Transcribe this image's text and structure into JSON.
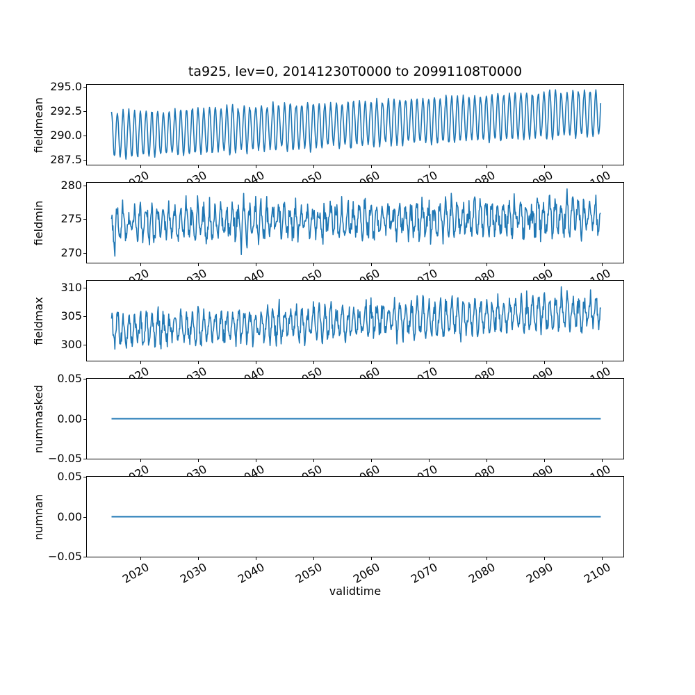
{
  "chart_data": {
    "type": "line",
    "title": "ta925, lev=0, 20141230T0000 to 20991108T0000",
    "xlabel": "validtime",
    "line_color": "#1f77b4",
    "frame_color": "#000000",
    "background_color": "#ffffff",
    "legend": "none",
    "grid": false,
    "x": {
      "lim": [
        2010.6,
        2103.9
      ],
      "data_start": 2015.0,
      "data_end": 2099.85,
      "ticks": [
        2020,
        2030,
        2040,
        2050,
        2060,
        2070,
        2080,
        2090,
        2100
      ],
      "tick_labels": [
        "2020",
        "2030",
        "2040",
        "2050",
        "2060",
        "2070",
        "2080",
        "2090",
        "2100"
      ],
      "tick_rotation_deg": 30
    },
    "subplots": [
      {
        "ylabel": "fieldmean",
        "ylim": [
          287.0,
          295.2
        ],
        "yticks": [
          287.5,
          290.0,
          292.5,
          295.0
        ],
        "ytick_labels": [
          "287.5",
          "290.0",
          "292.5",
          "295.0"
        ],
        "series": {
          "kind": "seasonal",
          "points_per_year": 12,
          "mean_start": 290.05,
          "mean_end": 292.35,
          "amplitude": 2.25,
          "amp_jitter": 0.22,
          "noise": 0.12,
          "phase": 0.0,
          "spike_prob": 0,
          "spike_size": 0,
          "seed": 11
        },
        "description": "annual cycle ~287.7-292.3 in 2015 rising steadily to ~290.0-294.8 by 2100"
      },
      {
        "ylabel": "fieldmin",
        "ylim": [
          268.5,
          280.4
        ],
        "yticks": [
          270,
          275,
          280
        ],
        "ytick_labels": [
          "270",
          "275",
          "280"
        ],
        "series": {
          "kind": "seasonal",
          "points_per_year": 12,
          "mean_start": 274.3,
          "mean_end": 275.4,
          "amplitude": 2.0,
          "amp_jitter": 0.6,
          "noise": 0.8,
          "phase": 0.3,
          "spike_prob": 0.006,
          "spike_size": -2.0,
          "seed": 22
        },
        "description": "noisy annual cycle mostly 271-278, occasional dips near 269, peaks to ~280 late century"
      },
      {
        "ylabel": "fieldmax",
        "ylim": [
          297.2,
          311.2
        ],
        "yticks": [
          300,
          305,
          310
        ],
        "ytick_labels": [
          "300",
          "305",
          "310"
        ],
        "series": {
          "kind": "seasonal",
          "points_per_year": 12,
          "mean_start": 302.4,
          "mean_end": 305.7,
          "amplitude": 2.4,
          "amp_jitter": 0.6,
          "noise": 0.75,
          "phase": -0.2,
          "spike_prob": 0.008,
          "spike_size": 1.8,
          "seed": 33
        },
        "description": "noisy annual cycle ~299-305.5 in 2015 rising to ~301.5-310.5 by 2100"
      },
      {
        "ylabel": "nummasked",
        "ylim": [
          -0.05,
          0.05
        ],
        "yticks": [
          -0.05,
          0.0,
          0.05
        ],
        "ytick_labels": [
          "−0.05",
          "0.00",
          "0.05"
        ],
        "series": {
          "kind": "constant",
          "value": 0.0
        },
        "description": "constant 0 over whole period"
      },
      {
        "ylabel": "numnan",
        "ylim": [
          -0.05,
          0.05
        ],
        "yticks": [
          -0.05,
          0.0,
          0.05
        ],
        "ytick_labels": [
          "−0.05",
          "0.00",
          "0.05"
        ],
        "series": {
          "kind": "constant",
          "value": 0.0
        },
        "description": "constant 0 over whole period"
      }
    ]
  }
}
